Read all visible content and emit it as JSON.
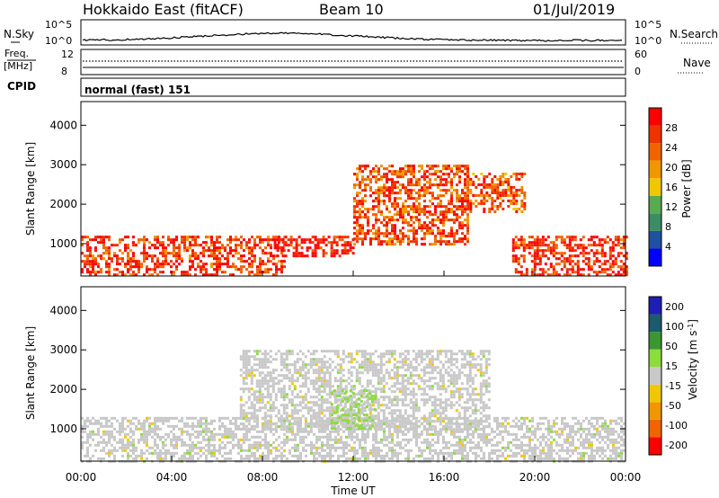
{
  "header": {
    "station": "Hokkaido East (fitACF)",
    "beam": "Beam 10",
    "date": "01/Jul/2019"
  },
  "small_panels": {
    "nsky": {
      "label": "N.Sky",
      "ticks": [
        "10^5",
        "10^0"
      ],
      "right_ticks": [
        "10^5",
        "10^0"
      ],
      "right_label": "N.Search"
    },
    "freq": {
      "label_line1": "Freq.",
      "label_line2": "[MHz]",
      "ticks": [
        "12",
        "8"
      ],
      "right_ticks": [
        "60",
        "0"
      ],
      "right_label": "Nave"
    },
    "cpid": {
      "label": "CPID",
      "text": "normal (fast) 151"
    }
  },
  "colors": {
    "power_scale": [
      "#0000ff",
      "#2050a0",
      "#3c8c64",
      "#5aaa50",
      "#f0c800",
      "#f09600",
      "#f06400",
      "#f03200",
      "#ff0000"
    ],
    "velocity_scale": [
      "#1e1eb4",
      "#1e5a6e",
      "#3c9632",
      "#8cdc3c",
      "#c8c8c8",
      "#f0c800",
      "#f09600",
      "#f06400",
      "#ff0000"
    ]
  },
  "chart_data": [
    {
      "type": "heatmap",
      "panel": "power",
      "xlabel": "",
      "ylabel": "Slant Range [km]",
      "xlim": [
        0,
        24
      ],
      "ylim": [
        180,
        4600
      ],
      "x_ticks": [
        "00:00",
        "04:00",
        "08:00",
        "12:00",
        "16:00",
        "20:00",
        "00:00"
      ],
      "y_ticks": [
        1000,
        2000,
        3000,
        4000
      ],
      "colorbar": {
        "label": "Power [dB]",
        "ticks": [
          4,
          8,
          12,
          16,
          20,
          24,
          28
        ],
        "range": [
          0,
          32
        ]
      },
      "features": [
        {
          "t_start": 0,
          "t_end": 9,
          "range_km": [
            200,
            1200
          ],
          "value": 27
        },
        {
          "t_start": 8.5,
          "t_end": 12,
          "range_km": [
            700,
            1200
          ],
          "value": 30
        },
        {
          "t_start": 12,
          "t_end": 17,
          "range_km": [
            1000,
            3000
          ],
          "value": 25
        },
        {
          "t_start": 17,
          "t_end": 19.5,
          "range_km": [
            1800,
            2800
          ],
          "value": 24
        },
        {
          "t_start": 19,
          "t_end": 24,
          "range_km": [
            200,
            1200
          ],
          "value": 28
        }
      ]
    },
    {
      "type": "heatmap",
      "panel": "velocity",
      "xlabel": "Time UT",
      "ylabel": "Slant Range [km]",
      "xlim": [
        0,
        24
      ],
      "ylim": [
        180,
        4600
      ],
      "x_ticks": [
        "00:00",
        "04:00",
        "08:00",
        "12:00",
        "16:00",
        "20:00",
        "00:00"
      ],
      "y_ticks": [
        1000,
        2000,
        3000,
        4000
      ],
      "colorbar": {
        "label": "Velocity [m s^-1]",
        "ticks": [
          200,
          100,
          50,
          15,
          -15,
          -50,
          -100,
          -200
        ],
        "range": [
          -250,
          250
        ]
      },
      "features": [
        {
          "t_start": 0,
          "t_end": 24,
          "range_km": [
            200,
            1300
          ],
          "value": 0
        },
        {
          "t_start": 7,
          "t_end": 18,
          "range_km": [
            1000,
            3000
          ],
          "value": 0
        },
        {
          "t_start": 11,
          "t_end": 13,
          "range_km": [
            1000,
            2000
          ],
          "value": 30
        }
      ]
    }
  ]
}
